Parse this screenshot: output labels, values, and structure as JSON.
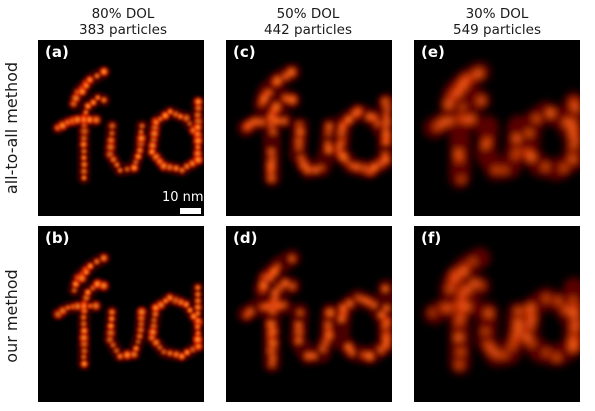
{
  "columns": [
    {
      "dol": "80% DOL",
      "particles": "383 particles"
    },
    {
      "dol": "50% DOL",
      "particles": "442 particles"
    },
    {
      "dol": "30% DOL",
      "particles": "549 particles"
    }
  ],
  "rows": [
    {
      "label": "all-to-all method"
    },
    {
      "label": "our method"
    }
  ],
  "panels": [
    {
      "label": "(a)",
      "dol_fraction": 0.8
    },
    {
      "label": "(c)",
      "dol_fraction": 0.5
    },
    {
      "label": "(e)",
      "dol_fraction": 0.3
    },
    {
      "label": "(b)",
      "dol_fraction": 0.8
    },
    {
      "label": "(d)",
      "dol_fraction": 0.5
    },
    {
      "label": "(f)",
      "dol_fraction": 0.3
    }
  ],
  "scale_bar": {
    "label": "10 nm"
  },
  "colors": {
    "background": "#000000",
    "hot_low": "#8b0000",
    "hot_mid": "#ff3300",
    "hot_high": "#ffd040"
  }
}
